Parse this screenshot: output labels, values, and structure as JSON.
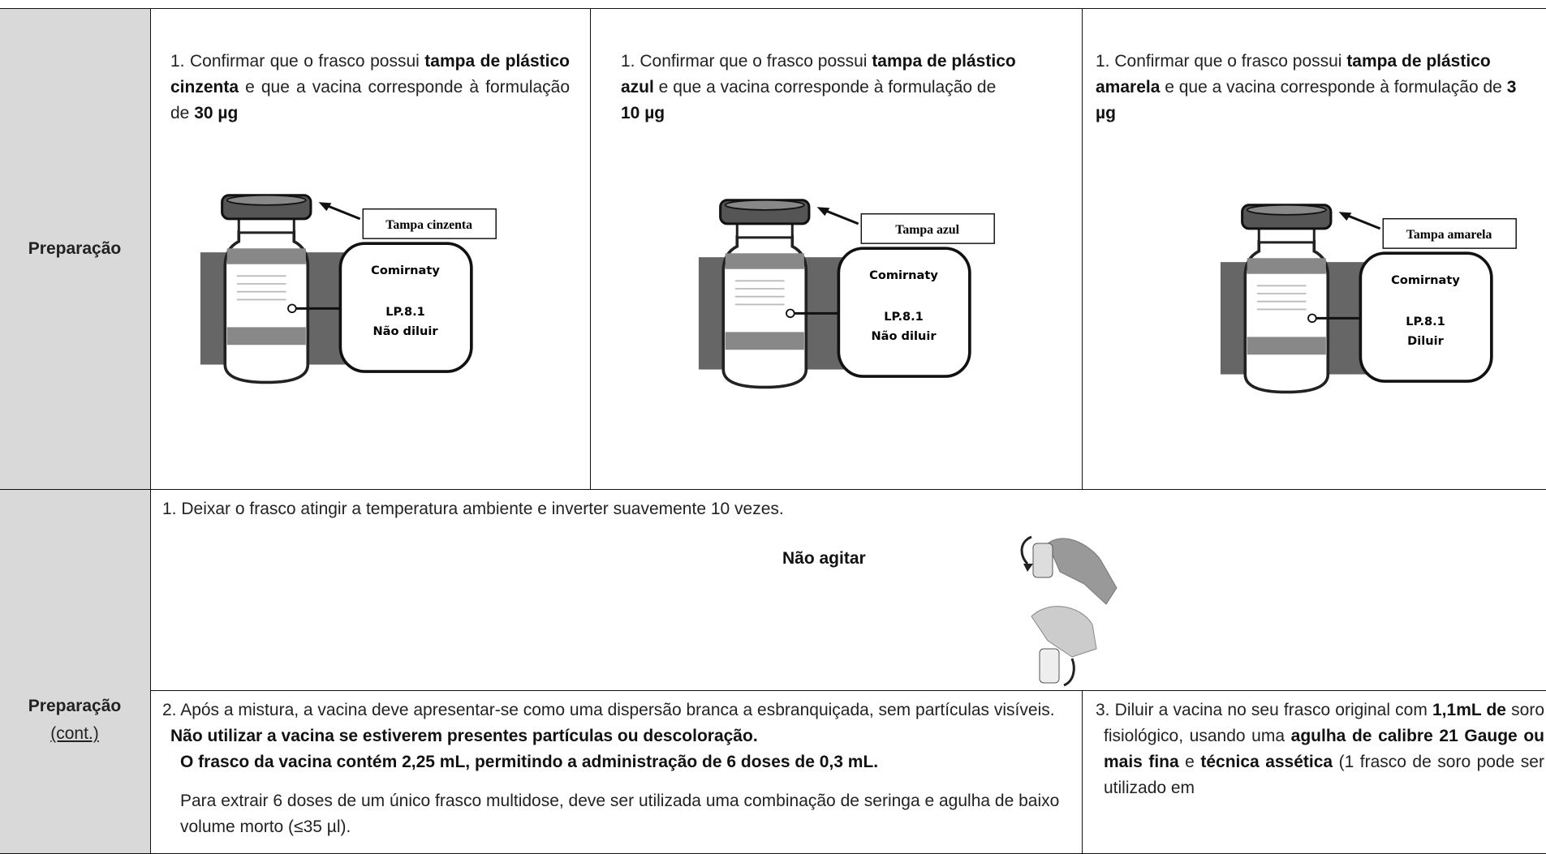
{
  "sections": [
    {
      "header": "Preparação",
      "cells": [
        {
          "paragraphs": [
            [
              {
                "text": "1. Confirmar que o frasco possui "
              },
              {
                "text": "tampa de plástico cinzenta",
                "bold": true
              },
              {
                "text": " e que a vacina corresponde à formulação de "
              },
              {
                "text": "30 µg",
                "bold": true
              }
            ]
          ],
          "figure": {
            "cap_label": "Tampa cinzenta",
            "callout": [
              "Comirnaty",
              "LP.8.1",
              "Não diluir"
            ]
          }
        },
        {
          "paragraphs": [
            [
              {
                "text": "1. Confirmar que o frasco possui "
              },
              {
                "text": "tampa de plástico azul",
                "bold": true
              },
              {
                "text": " e que a vacina corresponde à formulação de "
              },
              {
                "text": "10 µg",
                "bold": true
              }
            ]
          ],
          "figure": {
            "cap_label": "Tampa azul",
            "callout": [
              "Comirnaty",
              "LP.8.1",
              "Não diluir"
            ]
          }
        },
        {
          "paragraphs": [
            [
              {
                "text": "1. Confirmar que o frasco possui "
              },
              {
                "text": "tampa de plástico amarela",
                "bold": true
              },
              {
                "text": " e que a vacina corresponde à formulação de "
              },
              {
                "text": "3 µg",
                "bold": true
              }
            ]
          ],
          "figure": {
            "cap_label": "Tampa amarela",
            "callout": [
              "Comirnaty",
              "LP.8.1",
              "Diluir"
            ]
          }
        }
      ]
    },
    {
      "header": "Preparação",
      "subheader": "(cont.)",
      "cells": [
        {
          "paragraphs": [
            [
              {
                "text": "1. Deixar o frasco atingir a temperatura ambiente e inverter suavemente 10 vezes."
              }
            ],
            [
              {
                "text": "Não agitar",
                "bold": true
              }
            ]
          ]
        },
        {
          "paragraphs": [
            [
              {
                "text": "2. Após a mistura, a vacina deve apresentar-se como uma dispersão branca a esbranquiçada, sem partículas visíveis. "
              },
              {
                "text": "Não utilizar a vacina se estiverem presentes partículas ou descoloração.",
                "bold": true
              }
            ],
            [
              {
                "text": "O frasco da vacina contém 2,25 mL, permitindo a administração de 6 doses de 0,3 mL.",
                "bold": true
              }
            ],
            [
              {
                "text": "Para extrair 6 doses de um único frasco multidose, deve ser utilizada uma combinação de seringa e agulha de baixo volume morto (≤35 µl)."
              }
            ]
          ]
        },
        {
          "paragraphs": [
            [
              {
                "text": "3. Diluir a vacina no seu frasco original com "
              },
              {
                "text": "1,1mL de",
                "bold": true
              },
              {
                "text": " soro fisiológico, usando uma "
              },
              {
                "text": "agulha de calibre 21 Gauge ou mais fina",
                "bold": true
              },
              {
                "text": " e "
              },
              {
                "text": "técnica assética",
                "bold": true
              },
              {
                "text": " (1 frasco de soro pode ser utilizado em"
              }
            ]
          ]
        }
      ]
    }
  ]
}
